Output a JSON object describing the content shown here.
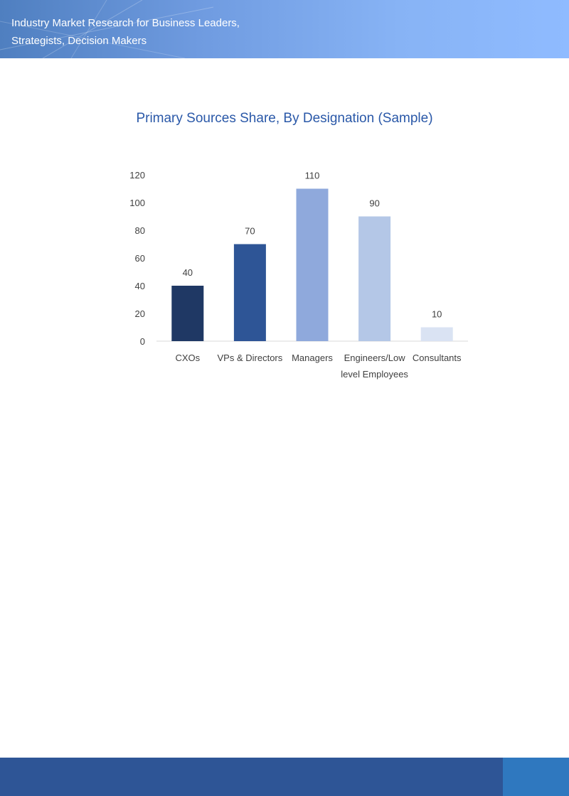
{
  "header": {
    "line1": "Industry Market Research for Business Leaders,",
    "line2": "Strategists, Decision Makers"
  },
  "colors": {
    "header": "#6f9be0",
    "title": "#2a58a8",
    "footer": "#2e5596",
    "footer_block": "#2f78bf"
  },
  "chart_data": {
    "type": "bar",
    "title": "Primary Sources Share, By Designation (Sample)",
    "categories": [
      [
        "CXOs"
      ],
      [
        "VPs & Directors"
      ],
      [
        "Managers"
      ],
      [
        "Engineers/Low",
        "level Employees"
      ],
      [
        "Consultants"
      ]
    ],
    "values": [
      40,
      70,
      110,
      90,
      10
    ],
    "bar_colors": [
      "#1f3864",
      "#2e5596",
      "#8fa9dc",
      "#b4c7e7",
      "#dae3f3"
    ],
    "ylim": [
      0,
      120
    ],
    "yticks": [
      0,
      20,
      40,
      60,
      80,
      100,
      120
    ],
    "grid": false,
    "data_labels": true,
    "xlabel": "",
    "ylabel": ""
  }
}
